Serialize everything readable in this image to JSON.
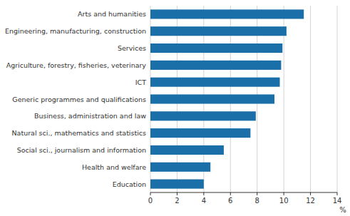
{
  "chart_data": {
    "type": "bar",
    "orientation": "horizontal",
    "categories": [
      "Education",
      "Health and welfare",
      "Social sci., journalism and information",
      "Natural sci., mathematics and statistics",
      "Business, administration and law",
      "Generic programmes and qualifications",
      "ICT",
      "Agriculture, forestry, fisheries, veterinary",
      "Services",
      "Engineering, manufacturing, construction",
      "Arts and humanities"
    ],
    "values": [
      4.0,
      4.5,
      5.5,
      7.5,
      7.9,
      9.3,
      9.7,
      9.8,
      9.9,
      10.2,
      11.5
    ],
    "color": "#1a6fa8",
    "xlim": [
      0,
      14
    ],
    "xticks": [
      0,
      2,
      4,
      6,
      8,
      10,
      12,
      14
    ],
    "xlabel": "%",
    "grid": true
  }
}
